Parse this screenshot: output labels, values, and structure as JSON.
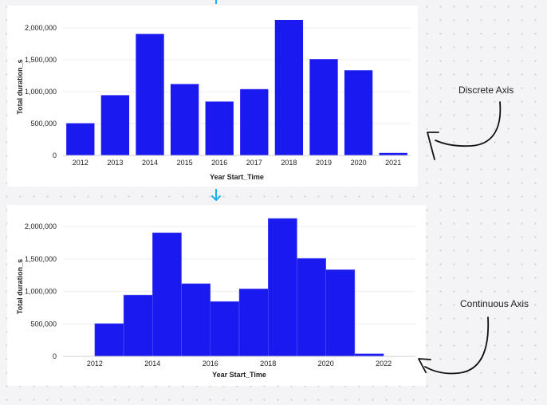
{
  "chart_data": [
    {
      "type": "bar",
      "axis_kind": "discrete",
      "categories": [
        "2012",
        "2013",
        "2014",
        "2015",
        "2016",
        "2017",
        "2018",
        "2019",
        "2020",
        "2021"
      ],
      "values": [
        505000,
        945000,
        1905000,
        1120000,
        845000,
        1040000,
        2125000,
        1510000,
        1335000,
        40000
      ],
      "xlabel": "Year Start_Time",
      "ylabel": "Total duration_s",
      "ylim": [
        0,
        2150000
      ],
      "yticks": [
        0,
        500000,
        1000000,
        1500000,
        2000000
      ],
      "ytick_labels": [
        "0",
        "500,000",
        "1,000,000",
        "1,500,000",
        "2,000,000"
      ],
      "bar_color": "#1a1af0",
      "grid": true
    },
    {
      "type": "bar",
      "axis_kind": "continuous",
      "bins": [
        {
          "start": 2012,
          "end": 2013,
          "value": 505000
        },
        {
          "start": 2013,
          "end": 2014,
          "value": 945000
        },
        {
          "start": 2014,
          "end": 2015,
          "value": 1905000
        },
        {
          "start": 2015,
          "end": 2016,
          "value": 1120000
        },
        {
          "start": 2016,
          "end": 2017,
          "value": 845000
        },
        {
          "start": 2017,
          "end": 2018,
          "value": 1040000
        },
        {
          "start": 2018,
          "end": 2019,
          "value": 2125000
        },
        {
          "start": 2019,
          "end": 2020,
          "value": 1510000
        },
        {
          "start": 2020,
          "end": 2021,
          "value": 1335000
        },
        {
          "start": 2021,
          "end": 2022,
          "value": 40000
        }
      ],
      "xlim": [
        2010.9,
        2023.1
      ],
      "xticks": [
        2012,
        2014,
        2016,
        2018,
        2020,
        2022
      ],
      "xlabel": "Year Start_Time",
      "ylabel": "Total duration_s",
      "ylim": [
        0,
        2150000
      ],
      "yticks": [
        0,
        500000,
        1000000,
        1500000,
        2000000
      ],
      "ytick_labels": [
        "0",
        "500,000",
        "1,000,000",
        "1,500,000",
        "2,000,000"
      ],
      "bar_color": "#1a1af0",
      "grid": true
    }
  ],
  "annotations": {
    "discrete_label": "Discrete Axis",
    "continuous_label": "Continuous Axis"
  },
  "colors": {
    "connector_arrow": "#1ab0f0",
    "annotation_ink": "#111111"
  }
}
